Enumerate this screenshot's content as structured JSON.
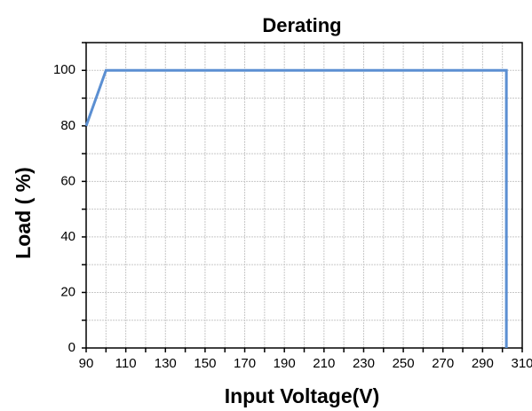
{
  "chart_data": {
    "type": "line",
    "title": "Derating",
    "xlabel": "Input Voltage(V)",
    "ylabel": "Load ( %)",
    "x": [
      90,
      100,
      302,
      302
    ],
    "series": [
      {
        "name": "Load",
        "color": "#5b8fd2",
        "values": [
          80,
          100,
          100,
          0
        ]
      }
    ],
    "xlim": [
      90,
      310
    ],
    "xticks": [
      90,
      110,
      130,
      150,
      170,
      190,
      210,
      230,
      250,
      270,
      290,
      310
    ],
    "xminorticks": [
      100,
      120,
      140,
      160,
      180,
      200,
      220,
      240,
      260,
      280,
      300
    ],
    "ylim": [
      0,
      110
    ],
    "yticks": [
      0,
      20,
      40,
      60,
      80,
      100
    ],
    "yminorticks": [
      10,
      30,
      50,
      70,
      90,
      110
    ],
    "grid": true
  }
}
